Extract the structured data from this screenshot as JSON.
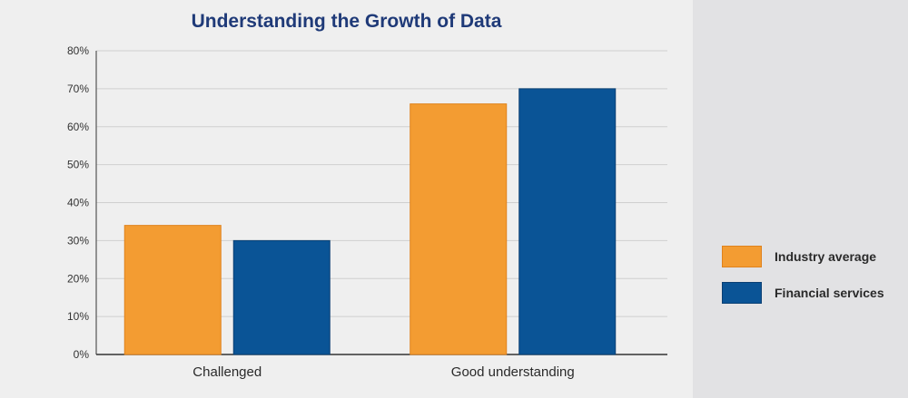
{
  "chart_data": {
    "type": "bar",
    "title": "Understanding the Growth of Data",
    "categories": [
      "Challenged",
      "Good understanding"
    ],
    "series": [
      {
        "name": "Industry average",
        "values": [
          34,
          66
        ],
        "color": "#f39c32",
        "edge": "#e0821c"
      },
      {
        "name": "Financial services",
        "values": [
          30,
          70
        ],
        "color": "#0a5496",
        "edge": "#0a3f73"
      }
    ],
    "ylim": [
      0,
      80
    ],
    "yticks": [
      "0%",
      "10%",
      "20%",
      "30%",
      "40%",
      "50%",
      "60%",
      "70%",
      "80%"
    ],
    "grid": true,
    "legend_position": "right"
  }
}
